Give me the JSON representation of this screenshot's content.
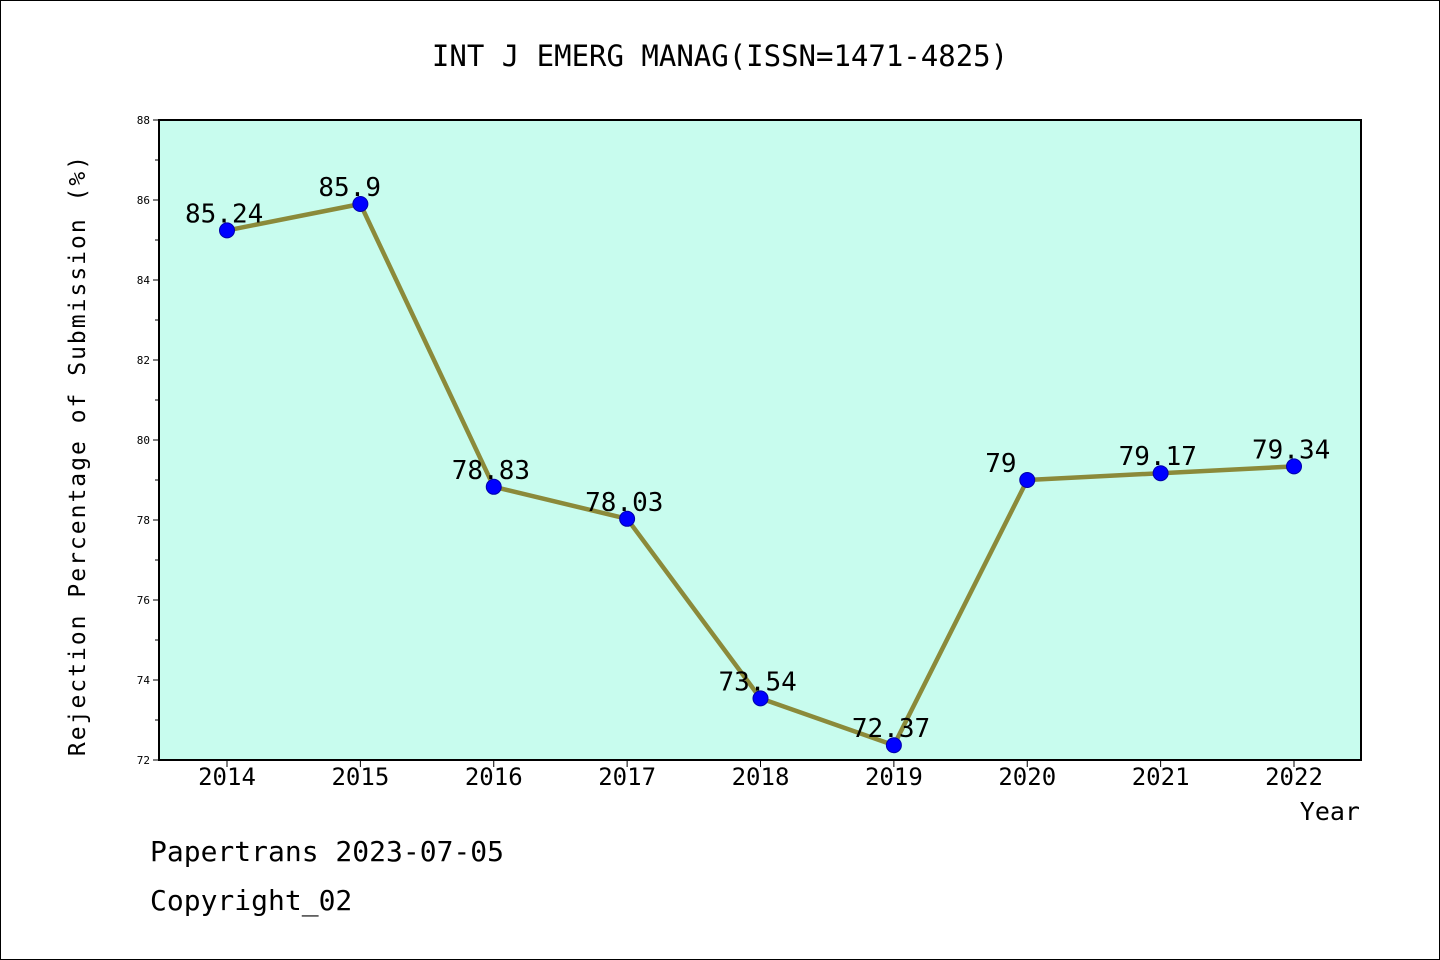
{
  "footer": {
    "line1": "Papertrans 2023-07-05",
    "line2": "Copyright_02"
  },
  "colors": {
    "plot_background": "#c8fcee",
    "line": "#8b8a3a",
    "marker": "#0000ff",
    "axis": "#000000"
  },
  "chart_data": {
    "type": "line",
    "title": "INT J EMERG MANAG(ISSN=1471-4825)",
    "xlabel": "Year",
    "ylabel": "Rejection Percentage of Submission (%)",
    "x": [
      "2014",
      "2015",
      "2016",
      "2017",
      "2018",
      "2019",
      "2020",
      "2021",
      "2022"
    ],
    "series": [
      {
        "values": [
          85.24,
          85.9,
          78.83,
          78.03,
          73.54,
          72.37,
          79,
          79.17,
          79.34
        ],
        "labels": [
          "85.24",
          "85.9",
          "78.83",
          "78.03",
          "73.54",
          "72.37",
          "79",
          "79.17",
          "79.34"
        ]
      }
    ],
    "ylim": [
      72,
      88
    ],
    "yticks": [
      "72",
      "74",
      "76",
      "78",
      "80",
      "82",
      "84",
      "86",
      "88"
    ],
    "grid": false,
    "legend": "none"
  }
}
